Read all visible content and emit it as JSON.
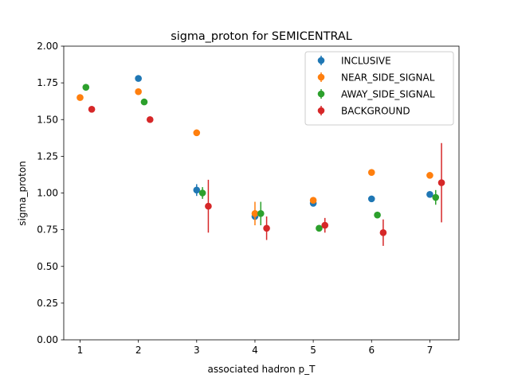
{
  "chart_data": {
    "type": "scatter",
    "title": "sigma_proton for SEMICENTRAL",
    "xlabel": "associated hadron p_T",
    "ylabel": "sigma_proton",
    "xlim": [
      0.72,
      7.5
    ],
    "ylim": [
      0,
      2.0
    ],
    "xticks": [
      1,
      2,
      3,
      4,
      5,
      6,
      7
    ],
    "xtick_labels": [
      "1",
      "2",
      "3",
      "4",
      "5",
      "6",
      "7"
    ],
    "yticks": [
      0,
      0.25,
      0.5,
      0.75,
      1.0,
      1.25,
      1.5,
      1.75,
      2.0
    ],
    "ytick_labels": [
      "0.00",
      "0.25",
      "0.50",
      "0.75",
      "1.00",
      "1.25",
      "1.50",
      "1.75",
      "2.00"
    ],
    "grid": false,
    "legend_position": "top-right",
    "series": [
      {
        "name": "INCLUSIVE",
        "color": "#1f77b4",
        "points": [
          {
            "x": 2.0,
            "y": 1.78,
            "err": 0.015
          },
          {
            "x": 3.0,
            "y": 1.02,
            "err": 0.04
          },
          {
            "x": 4.0,
            "y": 0.84,
            "err": 0.02
          },
          {
            "x": 5.0,
            "y": 0.93,
            "err": 0.015
          },
          {
            "x": 6.0,
            "y": 0.96,
            "err": 0.01
          },
          {
            "x": 7.0,
            "y": 0.99,
            "err": 0.01
          }
        ]
      },
      {
        "name": "NEAR_SIDE_SIGNAL",
        "color": "#ff7f0e",
        "points": [
          {
            "x": 1.0,
            "y": 1.65,
            "err": 0.01
          },
          {
            "x": 2.0,
            "y": 1.69,
            "err": 0.01
          },
          {
            "x": 3.0,
            "y": 1.41,
            "err": 0.01
          },
          {
            "x": 4.0,
            "y": 0.86,
            "err": 0.08
          },
          {
            "x": 5.0,
            "y": 0.95,
            "err": 0.015
          },
          {
            "x": 6.0,
            "y": 1.14,
            "err": 0.01
          },
          {
            "x": 7.0,
            "y": 1.12,
            "err": 0.01
          }
        ]
      },
      {
        "name": "AWAY_SIDE_SIGNAL",
        "color": "#2ca02c",
        "points": [
          {
            "x": 1.1,
            "y": 1.72,
            "err": 0.01
          },
          {
            "x": 2.1,
            "y": 1.62,
            "err": 0.01
          },
          {
            "x": 3.1,
            "y": 1.0,
            "err": 0.04
          },
          {
            "x": 4.1,
            "y": 0.86,
            "err": 0.08
          },
          {
            "x": 5.1,
            "y": 0.76,
            "err": 0.015
          },
          {
            "x": 6.1,
            "y": 0.85,
            "err": 0.01
          },
          {
            "x": 7.1,
            "y": 0.97,
            "err": 0.05
          }
        ]
      },
      {
        "name": "BACKGROUND",
        "color": "#d62728",
        "points": [
          {
            "x": 1.2,
            "y": 1.57,
            "err": 0.01
          },
          {
            "x": 2.2,
            "y": 1.5,
            "err": 0.01
          },
          {
            "x": 3.2,
            "y": 0.91,
            "err": 0.18
          },
          {
            "x": 4.2,
            "y": 0.76,
            "err": 0.08
          },
          {
            "x": 5.2,
            "y": 0.78,
            "err": 0.05
          },
          {
            "x": 6.2,
            "y": 0.73,
            "err": 0.09
          },
          {
            "x": 7.2,
            "y": 1.07,
            "err": 0.27
          }
        ]
      }
    ]
  }
}
